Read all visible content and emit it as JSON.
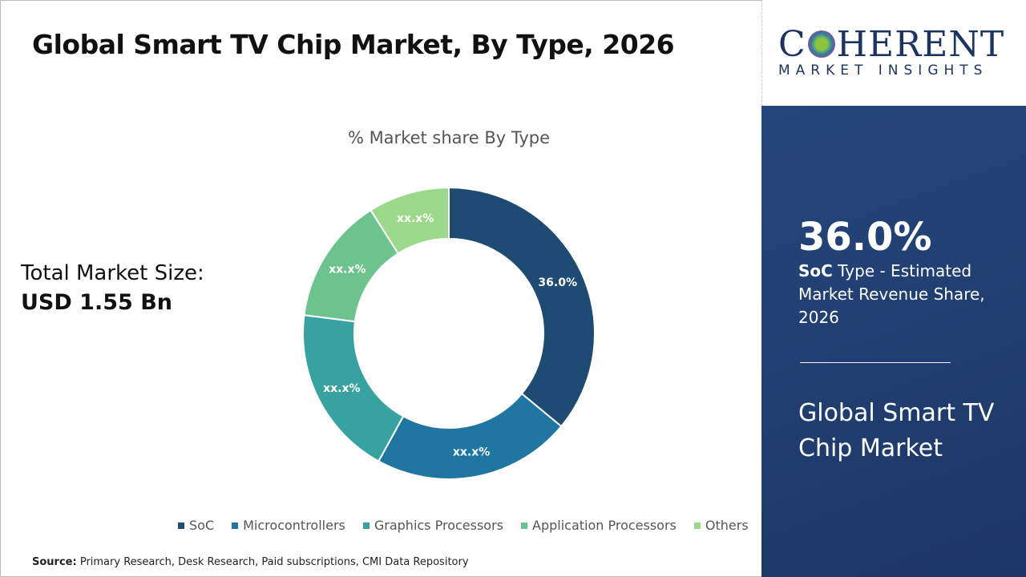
{
  "title": "Global Smart TV Chip Market, By Type, 2026",
  "total_market": {
    "label": "Total Market Size:",
    "value": "USD 1.55 Bn"
  },
  "source": {
    "label": "Source:",
    "text": "Primary Research, Desk Research, Paid subscriptions, CMI Data Repository"
  },
  "logo": {
    "name": "COHERENT",
    "tagline": "MARKET INSIGHTS"
  },
  "panel": {
    "percent": "36.0%",
    "highlight": "SoC",
    "description": " Type - Estimated Market Revenue Share, 2026",
    "market": "Global Smart TV Chip Market"
  },
  "chart_data": {
    "type": "pie",
    "variant": "donut",
    "title": "% Market share By Type",
    "legend_position": "bottom",
    "categories": [
      "SoC",
      "Microcontrollers",
      "Graphics Processors",
      "Application Processors",
      "Others"
    ],
    "values": [
      36.0,
      22,
      19,
      14,
      9
    ],
    "data_labels": [
      "36.0%",
      "xx.x%",
      "xx.x%",
      "xx.x%",
      "xx.x%"
    ],
    "colors": [
      "#1d4b74",
      "#1f76a0",
      "#37a29f",
      "#6cc38e",
      "#9cd98b"
    ]
  }
}
